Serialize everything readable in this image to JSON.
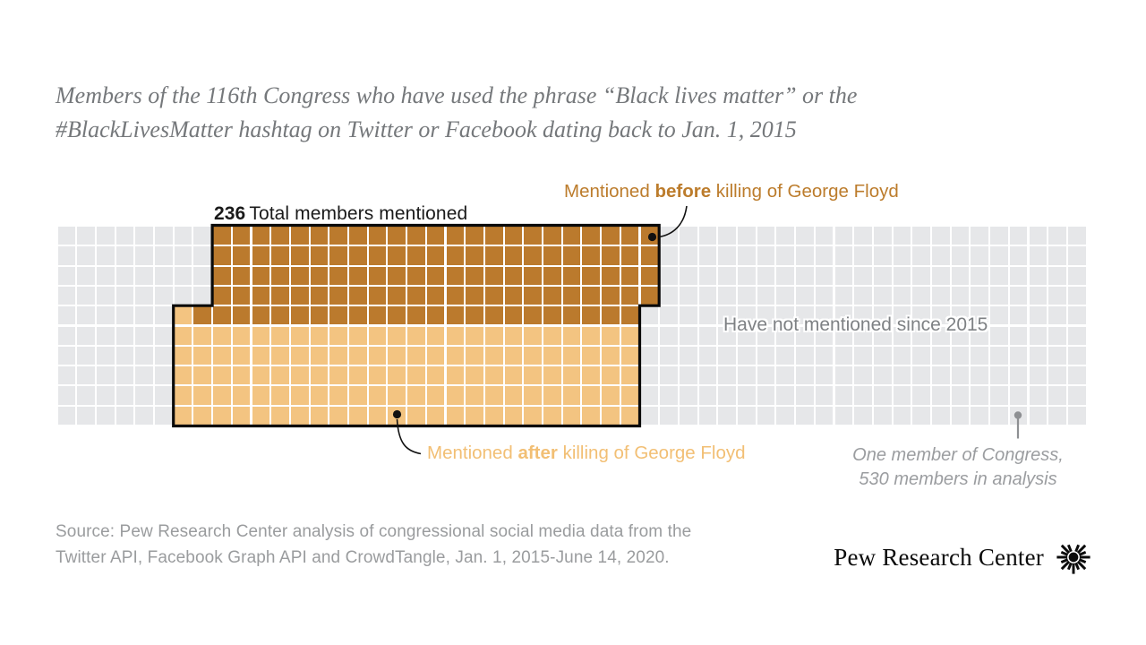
{
  "title": {
    "line1": "Members of the 116th Congress who have used the phrase “Black lives matter” or the",
    "line2": "#BlackLivesMatter hashtag on Twitter or Facebook dating back to Jan. 1, 2015"
  },
  "chart_data": {
    "type": "waffle",
    "title": "236 Total members mentioned",
    "unit_label": "One member of Congress, 530 members in analysis",
    "total_units": 530,
    "total_mentioned": 236,
    "grid": {
      "columns": 53,
      "rows": 10
    },
    "series": [
      {
        "name": "Mentioned before killing of George Floyd",
        "value": 115,
        "color": "#BB7A2D"
      },
      {
        "name": "Mentioned after killing of George Floyd",
        "value": 121,
        "color": "#F3C481"
      },
      {
        "name": "Have not mentioned since 2015",
        "value": 294,
        "color": "#E6E7E9"
      }
    ],
    "regions": {
      "before": [
        {
          "row_start": 0,
          "row_end": 3,
          "col_start": 8,
          "col_end": 30
        },
        {
          "row_start": 4,
          "row_end": 4,
          "col_start": 7,
          "col_end": 29
        }
      ],
      "after": [
        {
          "row_start": 4,
          "row_end": 4,
          "col_start": 6,
          "col_end": 6
        },
        {
          "row_start": 5,
          "row_end": 9,
          "col_start": 6,
          "col_end": 29
        }
      ]
    }
  },
  "labels": {
    "total_value": "236",
    "total_text": "Total members mentioned",
    "before": {
      "prefix": "Mentioned ",
      "bold": "before",
      "suffix": " killing of George Floyd"
    },
    "after": {
      "prefix": "Mentioned ",
      "bold": "after",
      "suffix": " killing of George Floyd"
    },
    "not_mentioned": "Have not mentioned since 2015",
    "unit_note_line1": "One member of Congress,",
    "unit_note_line2": "530 members in analysis"
  },
  "source": {
    "line1": "Source: Pew Research Center analysis of congressional social media data from the",
    "line2": "Twitter API, Facebook Graph API and CrowdTangle, Jan. 1, 2015-June 14, 2020."
  },
  "branding": {
    "name": "Pew Research Center"
  },
  "colors": {
    "before_cell": "#BB7A2D",
    "after_cell": "#F3C481",
    "not_mentioned_cell": "#E6E7E9",
    "before_text": "#BC7C2C",
    "after_text": "#F2BF74",
    "outline": "#0a0a0a",
    "pin_gray": "#8E9093"
  }
}
